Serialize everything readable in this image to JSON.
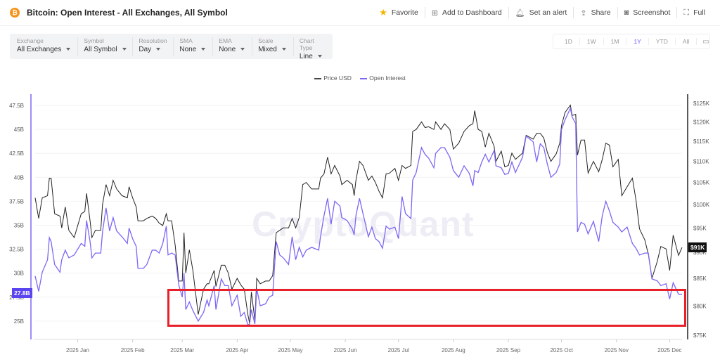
{
  "header": {
    "title": "Bitcoin: Open Interest - All Exchanges, All Symbol",
    "actions": [
      {
        "label": "Favorite",
        "icon": "star-icon"
      },
      {
        "label": "Add to Dashboard",
        "icon": "dashboard-icon"
      },
      {
        "label": "Set an alert",
        "icon": "bell-icon"
      },
      {
        "label": "Share",
        "icon": "share-icon"
      },
      {
        "label": "Screenshot",
        "icon": "camera-icon"
      },
      {
        "label": "Full",
        "icon": "fullscreen-icon"
      }
    ]
  },
  "controls": [
    {
      "label": "Exchange",
      "value": "All Exchanges"
    },
    {
      "label": "Symbol",
      "value": "All Symbol"
    },
    {
      "label": "Resolution",
      "value": "Day"
    },
    {
      "label": "SMA",
      "value": "None"
    },
    {
      "label": "EMA",
      "value": "None"
    },
    {
      "label": "Scale",
      "value": "Mixed"
    },
    {
      "label": "Chart Type",
      "value": "Line"
    }
  ],
  "ranges": {
    "items": [
      "1D",
      "1W",
      "1M",
      "1Y",
      "YTD",
      "All"
    ],
    "active": "1Y"
  },
  "watermark": "CryptoQuant",
  "colors": {
    "price": "#222222",
    "oi": "#7b68f5",
    "highlight": "#e8202a",
    "accent": "#6b5cf6"
  },
  "chart_data": {
    "type": "line",
    "title": "",
    "legend": [
      "Price USD",
      "Open Interest"
    ],
    "legend_position": "top",
    "grid": true,
    "x_ticks": [
      "2025 Jan",
      "2025 Feb",
      "2025 Mar",
      "2025 Apr",
      "2025 May",
      "2025 Jun",
      "2025 Jul",
      "2025 Aug",
      "2025 Sep",
      "2025 Oct",
      "2025 Nov",
      "2025 Dec"
    ],
    "x_tick_dates": [
      "2025-01-01",
      "2025-02-01",
      "2025-03-01",
      "2025-04-01",
      "2025-05-01",
      "2025-06-01",
      "2025-07-01",
      "2025-08-01",
      "2025-09-01",
      "2025-10-01",
      "2025-11-01",
      "2025-12-01"
    ],
    "xlim": [
      "2024-12-08",
      "2025-12-08"
    ],
    "left_axis": {
      "series": "Open Interest",
      "ticks": [
        "25B",
        "27.5B",
        "30B",
        "32.5B",
        "35B",
        "37.5B",
        "40B",
        "42.5B",
        "45B",
        "47.5B"
      ],
      "tick_values": [
        25,
        27.5,
        30,
        32.5,
        35,
        37.5,
        40,
        42.5,
        45,
        47.5
      ],
      "unit": "B",
      "last_label": "27.8B"
    },
    "right_axis": {
      "series": "Price USD",
      "scale": "log",
      "ticks": [
        "$75K",
        "$80K",
        "$85K",
        "$90K",
        "$95K",
        "$100K",
        "$105K",
        "$110K",
        "$115K",
        "$120K",
        "$125K"
      ],
      "tick_values": [
        75000,
        80000,
        85000,
        90000,
        95000,
        100000,
        105000,
        110000,
        115000,
        120000,
        125000
      ],
      "last_label": "$91K"
    },
    "highlight_region": {
      "x": [
        "2025-02-21",
        "2025-12-08"
      ],
      "oi_range_B": [
        24.4,
        28.3
      ]
    },
    "columns": [
      "date",
      "price_usd",
      "open_interest_B"
    ],
    "points": [
      [
        "2024-12-08",
        101500,
        29.7
      ],
      [
        "2024-12-10",
        97000,
        28.1
      ],
      [
        "2024-12-12",
        101500,
        30.1
      ],
      [
        "2024-12-15",
        102000,
        31.4
      ],
      [
        "2024-12-16",
        106000,
        33.7
      ],
      [
        "2024-12-17",
        106000,
        33.3
      ],
      [
        "2024-12-19",
        98000,
        30.9
      ],
      [
        "2024-12-22",
        97500,
        30.1
      ],
      [
        "2024-12-23",
        95000,
        31.4
      ],
      [
        "2024-12-25",
        99500,
        32.4
      ],
      [
        "2024-12-27",
        94500,
        31.6
      ],
      [
        "2024-12-30",
        93000,
        31.9
      ],
      [
        "2025-01-03",
        98000,
        33.1
      ],
      [
        "2025-01-05",
        98500,
        32.8
      ],
      [
        "2025-01-06",
        102500,
        35.5
      ],
      [
        "2025-01-08",
        96500,
        33.3
      ],
      [
        "2025-01-09",
        93000,
        31.6
      ],
      [
        "2025-01-11",
        94500,
        32.1
      ],
      [
        "2025-01-14",
        94500,
        32.1
      ],
      [
        "2025-01-15",
        100000,
        34.3
      ],
      [
        "2025-01-17",
        104500,
        36.8
      ],
      [
        "2025-01-19",
        102000,
        34.4
      ],
      [
        "2025-01-21",
        105500,
        35.8
      ],
      [
        "2025-01-23",
        103500,
        34.4
      ],
      [
        "2025-01-26",
        102000,
        33.8
      ],
      [
        "2025-01-29",
        101500,
        33.1
      ],
      [
        "2025-01-30",
        104000,
        34.7
      ],
      [
        "2025-02-01",
        101500,
        33.6
      ],
      [
        "2025-02-03",
        99500,
        32.8
      ],
      [
        "2025-02-04",
        96500,
        30.5
      ],
      [
        "2025-02-07",
        96500,
        30.5
      ],
      [
        "2025-02-09",
        97000,
        30.9
      ],
      [
        "2025-02-12",
        97500,
        32.4
      ],
      [
        "2025-02-14",
        97000,
        32.4
      ],
      [
        "2025-02-16",
        96000,
        32.1
      ],
      [
        "2025-02-18",
        95500,
        33.1
      ],
      [
        "2025-02-20",
        98000,
        34.9
      ],
      [
        "2025-02-21",
        96500,
        31.9
      ],
      [
        "2025-02-23",
        96500,
        32.1
      ],
      [
        "2025-02-25",
        91500,
        31.9
      ],
      [
        "2025-02-27",
        84500,
        28.8
      ],
      [
        "2025-03-01",
        84500,
        27.5
      ],
      [
        "2025-03-02",
        94000,
        30.0
      ],
      [
        "2025-03-03",
        86000,
        26.2
      ],
      [
        "2025-03-05",
        90500,
        27.0
      ],
      [
        "2025-03-07",
        86500,
        26.1
      ],
      [
        "2025-03-10",
        78500,
        25.0
      ],
      [
        "2025-03-13",
        83000,
        25.9
      ],
      [
        "2025-03-15",
        84000,
        27.2
      ],
      [
        "2025-03-16",
        84000,
        26.6
      ],
      [
        "2025-03-19",
        86500,
        28.7
      ],
      [
        "2025-03-20",
        83500,
        26.2
      ],
      [
        "2025-03-23",
        87500,
        29.4
      ],
      [
        "2025-03-25",
        87500,
        28.7
      ],
      [
        "2025-03-27",
        86000,
        28.7
      ],
      [
        "2025-03-29",
        83000,
        26.6
      ],
      [
        "2025-04-01",
        85000,
        27.7
      ],
      [
        "2025-04-03",
        83800,
        25.5
      ],
      [
        "2025-04-05",
        83000,
        25.9
      ],
      [
        "2025-04-07",
        78500,
        24.6
      ],
      [
        "2025-04-08",
        77000,
        24.7
      ],
      [
        "2025-04-09",
        82500,
        26.2
      ],
      [
        "2025-04-11",
        77500,
        24.7
      ],
      [
        "2025-04-12",
        85000,
        28.4
      ],
      [
        "2025-04-14",
        84000,
        26.6
      ],
      [
        "2025-04-17",
        84500,
        26.8
      ],
      [
        "2025-04-19",
        84500,
        27.5
      ],
      [
        "2025-04-21",
        85500,
        27.7
      ],
      [
        "2025-04-23",
        94000,
        33.3
      ],
      [
        "2025-04-25",
        94500,
        31.9
      ],
      [
        "2025-04-27",
        95000,
        31.6
      ],
      [
        "2025-04-30",
        95000,
        30.9
      ],
      [
        "2025-05-02",
        97000,
        33.8
      ],
      [
        "2025-05-04",
        95000,
        31.4
      ],
      [
        "2025-05-06",
        97200,
        32.7
      ],
      [
        "2025-05-08",
        104500,
        31.7
      ],
      [
        "2025-05-10",
        105000,
        32.4
      ],
      [
        "2025-05-13",
        103500,
        32.7
      ],
      [
        "2025-05-17",
        103500,
        32.4
      ],
      [
        "2025-05-18",
        106000,
        33.8
      ],
      [
        "2025-05-20",
        107000,
        36.0
      ],
      [
        "2025-05-22",
        111000,
        37.8
      ],
      [
        "2025-05-24",
        107000,
        35.1
      ],
      [
        "2025-05-26",
        109000,
        37.5
      ],
      [
        "2025-05-29",
        106500,
        37.0
      ],
      [
        "2025-05-30",
        104500,
        35.8
      ],
      [
        "2025-06-02",
        105500,
        35.5
      ],
      [
        "2025-06-05",
        104500,
        34.6
      ],
      [
        "2025-06-06",
        102000,
        34.0
      ],
      [
        "2025-06-07",
        105500,
        36.0
      ],
      [
        "2025-06-09",
        110000,
        37.8
      ],
      [
        "2025-06-11",
        109000,
        36.2
      ],
      [
        "2025-06-14",
        105500,
        33.8
      ],
      [
        "2025-06-16",
        106500,
        34.8
      ],
      [
        "2025-06-18",
        105000,
        33.6
      ],
      [
        "2025-06-20",
        103000,
        33.3
      ],
      [
        "2025-06-22",
        101500,
        32.6
      ],
      [
        "2025-06-24",
        107000,
        34.9
      ],
      [
        "2025-06-26",
        107200,
        34.6
      ],
      [
        "2025-06-29",
        108300,
        34.8
      ],
      [
        "2025-07-01",
        105500,
        33.6
      ],
      [
        "2025-07-03",
        109000,
        38.0
      ],
      [
        "2025-07-05",
        108300,
        36.2
      ],
      [
        "2025-07-08",
        109000,
        35.7
      ],
      [
        "2025-07-09",
        117500,
        39.7
      ],
      [
        "2025-07-11",
        118000,
        40.5
      ],
      [
        "2025-07-14",
        120000,
        43.1
      ],
      [
        "2025-07-16",
        118500,
        42.4
      ],
      [
        "2025-07-18",
        118700,
        42.0
      ],
      [
        "2025-07-21",
        118000,
        41.0
      ],
      [
        "2025-07-22",
        120000,
        42.5
      ],
      [
        "2025-07-25",
        118000,
        43.1
      ],
      [
        "2025-07-27",
        119500,
        43.1
      ],
      [
        "2025-07-30",
        118000,
        42.1
      ],
      [
        "2025-08-01",
        113000,
        40.7
      ],
      [
        "2025-08-04",
        114500,
        40.0
      ],
      [
        "2025-08-07",
        117500,
        41.2
      ],
      [
        "2025-08-10",
        119000,
        40.4
      ],
      [
        "2025-08-12",
        119500,
        39.1
      ],
      [
        "2025-08-13",
        123000,
        40.7
      ],
      [
        "2025-08-15",
        118000,
        40.5
      ],
      [
        "2025-08-17",
        117500,
        41.6
      ],
      [
        "2025-08-19",
        113500,
        42.4
      ],
      [
        "2025-08-21",
        117000,
        41.6
      ],
      [
        "2025-08-24",
        113700,
        42.8
      ],
      [
        "2025-08-25",
        110000,
        41.2
      ],
      [
        "2025-08-28",
        112500,
        41.0
      ],
      [
        "2025-08-30",
        108700,
        40.3
      ],
      [
        "2025-09-01",
        109000,
        40.4
      ],
      [
        "2025-09-03",
        112000,
        41.6
      ],
      [
        "2025-09-05",
        110500,
        40.5
      ],
      [
        "2025-09-09",
        112000,
        42.1
      ],
      [
        "2025-09-11",
        116500,
        44.3
      ],
      [
        "2025-09-15",
        115500,
        43.7
      ],
      [
        "2025-09-17",
        117000,
        41.6
      ],
      [
        "2025-09-19",
        117000,
        43.5
      ],
      [
        "2025-09-21",
        115800,
        43.1
      ],
      [
        "2025-09-23",
        112200,
        41.4
      ],
      [
        "2025-09-25",
        110000,
        40.0
      ],
      [
        "2025-09-28",
        111800,
        40.5
      ],
      [
        "2025-09-30",
        114500,
        41.4
      ],
      [
        "2025-10-01",
        119000,
        45.0
      ],
      [
        "2025-10-03",
        122500,
        46.0
      ],
      [
        "2025-10-06",
        124500,
        47.2
      ],
      [
        "2025-10-07",
        121700,
        46.3
      ],
      [
        "2025-10-09",
        122000,
        45.6
      ],
      [
        "2025-10-10",
        111500,
        34.3
      ],
      [
        "2025-10-12",
        115300,
        35.3
      ],
      [
        "2025-10-14",
        115300,
        35.1
      ],
      [
        "2025-10-16",
        107200,
        34.1
      ],
      [
        "2025-10-19",
        110000,
        35.4
      ],
      [
        "2025-10-22",
        107500,
        33.3
      ],
      [
        "2025-10-24",
        110500,
        36.0
      ],
      [
        "2025-10-26",
        114500,
        37.5
      ],
      [
        "2025-10-28",
        114000,
        36.5
      ],
      [
        "2025-10-30",
        108700,
        35.3
      ],
      [
        "2025-11-02",
        110500,
        34.8
      ],
      [
        "2025-11-04",
        102000,
        34.3
      ],
      [
        "2025-11-07",
        104000,
        34.8
      ],
      [
        "2025-11-10",
        106000,
        33.1
      ],
      [
        "2025-11-12",
        101000,
        32.6
      ],
      [
        "2025-11-14",
        94800,
        31.9
      ],
      [
        "2025-11-17",
        92500,
        32.1
      ],
      [
        "2025-11-19",
        89600,
        32.1
      ],
      [
        "2025-11-21",
        85000,
        29.4
      ],
      [
        "2025-11-24",
        88200,
        29.2
      ],
      [
        "2025-11-26",
        91200,
        28.7
      ],
      [
        "2025-11-29",
        90700,
        28.9
      ],
      [
        "2025-12-01",
        86500,
        27.3
      ],
      [
        "2025-12-03",
        93500,
        29.0
      ],
      [
        "2025-12-06",
        89400,
        27.8
      ],
      [
        "2025-12-08",
        91000,
        27.8
      ]
    ]
  }
}
